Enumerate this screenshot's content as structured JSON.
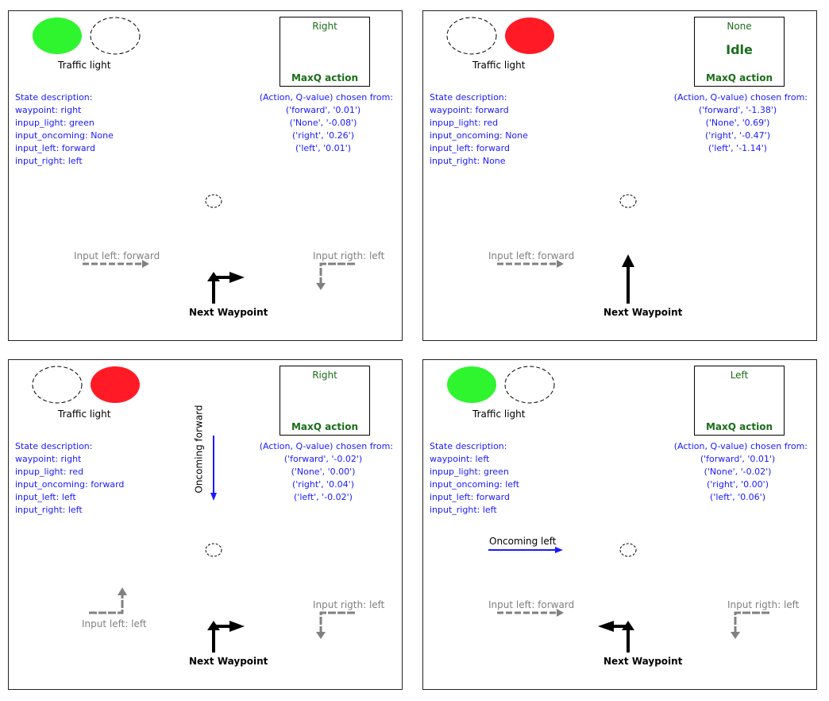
{
  "panels": [
    {
      "traffic_light_label": "Traffic light",
      "light_state": "green",
      "maxq_action": "Right",
      "maxq_caption": "MaxQ action",
      "state_title": "State description:",
      "state_lines": [
        "waypoint: right",
        "inpup_light: green",
        "input_oncoming: None",
        "input_left: forward",
        "input_right: left"
      ],
      "choice_title": "(Action, Q-value) chosen from:",
      "choices": [
        "('forward', '0.01')",
        "('None', '-0.08')",
        "('right', '0.26')",
        "('left', '0.01')"
      ],
      "input_left_label": "Input left: forward",
      "input_right_label": "Input rigth: left",
      "next_waypoint_label": "Next Waypoint"
    },
    {
      "traffic_light_label": "Traffic light",
      "light_state": "red",
      "maxq_action": "None",
      "maxq_idle": "Idle",
      "maxq_caption": "MaxQ action",
      "state_title": "State description:",
      "state_lines": [
        "waypoint: forward",
        "inpup_light: red",
        "input_oncoming: None",
        "input_left: forward",
        "input_right: None"
      ],
      "choice_title": "(Action, Q-value) chosen from:",
      "choices": [
        "('forward', '-1.38')",
        "('None', '0.69')",
        "('right', '-0.47')",
        "('left', '-1.14')"
      ],
      "input_left_label": "Input left: forward",
      "next_waypoint_label": "Next Waypoint"
    },
    {
      "traffic_light_label": "Traffic light",
      "light_state": "red",
      "maxq_action": "Right",
      "maxq_caption": "MaxQ action",
      "state_title": "State description:",
      "state_lines": [
        "waypoint: right",
        "inpup_light: red",
        "input_oncoming: forward",
        "input_left: left",
        "input_right: left"
      ],
      "choice_title": "(Action, Q-value) chosen from:",
      "choices": [
        "('forward', '-0.02')",
        "('None', '0.00')",
        "('right', '0.04')",
        "('left', '-0.02')"
      ],
      "oncoming_label": "Oncoming forward",
      "input_left_label": "Input left: left",
      "input_right_label": "Input rigth: left",
      "next_waypoint_label": "Next Waypoint"
    },
    {
      "traffic_light_label": "Traffic light",
      "light_state": "green",
      "maxq_action": "Left",
      "maxq_caption": "MaxQ action",
      "state_title": "State description:",
      "state_lines": [
        "waypoint: left",
        "inpup_light: green",
        "input_oncoming: left",
        "input_left: forward",
        "input_right: left"
      ],
      "choice_title": "(Action, Q-value) chosen from:",
      "choices": [
        "('forward', '0.01')",
        "('None', '-0.02')",
        "('right', '0.00')",
        "('left', '0.06')"
      ],
      "oncoming_label": "Oncoming left",
      "input_left_label": "Input left: forward",
      "input_right_label": "Input rigth: left",
      "next_waypoint_label": "Next Waypoint"
    }
  ],
  "colors": {
    "green_light": "#2ef52e",
    "red_light": "#ff1a26",
    "action_green": "#1a6e1a",
    "text_blue": "#1a1aff",
    "input_gray": "#808080",
    "oncoming_blue": "#1a1aff"
  }
}
